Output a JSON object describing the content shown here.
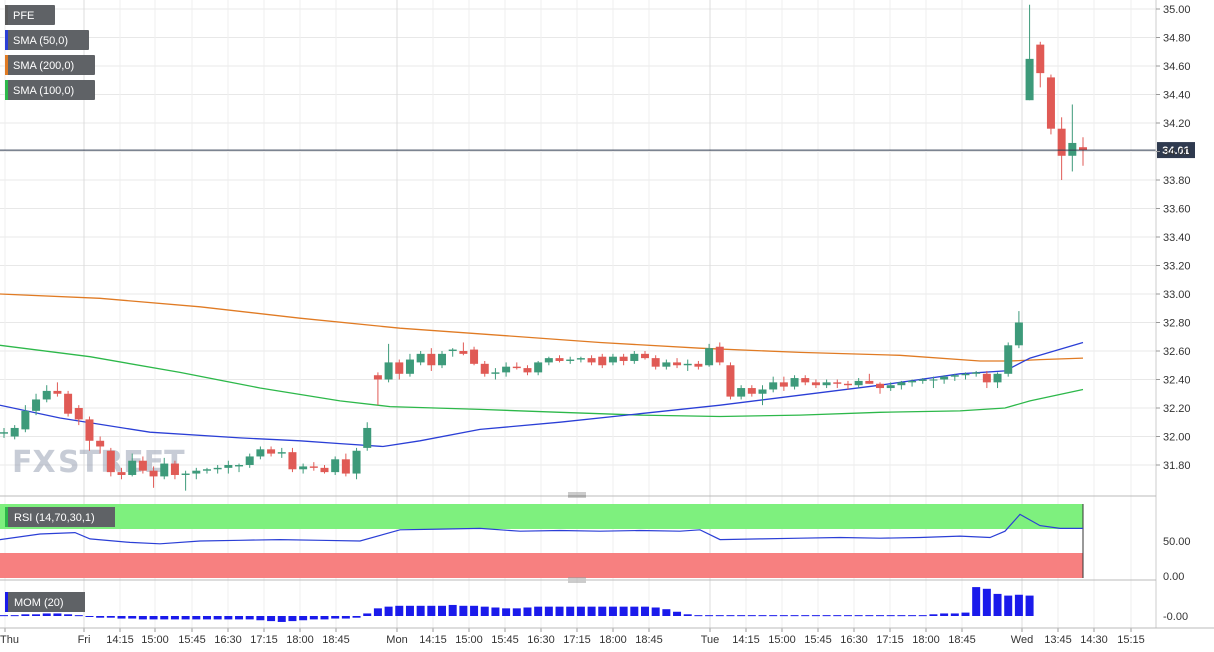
{
  "chart_data": [
    {
      "type": "candlestick",
      "symbol": "PFE",
      "legend": [
        {
          "label": "PFE",
          "color": "#5a5a5a"
        },
        {
          "label": "SMA (50,0)",
          "color": "#2b3fd6"
        },
        {
          "label": "SMA (200,0)",
          "color": "#e07b24"
        },
        {
          "label": "SMA (100,0)",
          "color": "#2db84a"
        }
      ],
      "current_price": "34.01",
      "ylim": [
        31.6,
        35.05
      ],
      "y_ticks": [
        "35.00",
        "34.80",
        "34.60",
        "34.40",
        "34.20",
        "34.00",
        "33.80",
        "33.60",
        "33.40",
        "33.20",
        "33.00",
        "32.80",
        "32.60",
        "32.40",
        "32.20",
        "32.00",
        "31.80"
      ],
      "x_ticks": [
        "Thu",
        "Fri",
        "14:15",
        "15:00",
        "15:45",
        "16:30",
        "17:15",
        "18:00",
        "18:45",
        "Mon",
        "14:15",
        "15:00",
        "15:45",
        "16:30",
        "17:15",
        "18:00",
        "18:45",
        "Tue",
        "14:15",
        "15:00",
        "15:45",
        "16:30",
        "17:15",
        "18:00",
        "18:45",
        "Wed",
        "13:45",
        "14:30",
        "15:15"
      ],
      "sessions": [
        "Fri",
        "Mon",
        "Tue",
        "Wed"
      ],
      "candles": [
        {
          "o": 32.02,
          "h": 32.06,
          "l": 31.99,
          "c": 32.03
        },
        {
          "o": 32.0,
          "h": 32.08,
          "l": 31.98,
          "c": 32.06
        },
        {
          "o": 32.05,
          "h": 32.22,
          "l": 32.03,
          "c": 32.18
        },
        {
          "o": 32.18,
          "h": 32.3,
          "l": 32.15,
          "c": 32.26
        },
        {
          "o": 32.26,
          "h": 32.36,
          "l": 32.24,
          "c": 32.32
        },
        {
          "o": 32.32,
          "h": 32.38,
          "l": 32.28,
          "c": 32.3
        },
        {
          "o": 32.3,
          "h": 32.32,
          "l": 32.14,
          "c": 32.16
        },
        {
          "o": 32.2,
          "h": 32.22,
          "l": 32.08,
          "c": 32.12
        },
        {
          "o": 32.12,
          "h": 32.14,
          "l": 31.9,
          "c": 31.97
        },
        {
          "o": 31.97,
          "h": 32.0,
          "l": 31.88,
          "c": 31.93
        },
        {
          "o": 31.9,
          "h": 31.92,
          "l": 31.72,
          "c": 31.75
        },
        {
          "o": 31.75,
          "h": 31.78,
          "l": 31.7,
          "c": 31.73
        },
        {
          "o": 31.73,
          "h": 31.88,
          "l": 31.72,
          "c": 31.83
        },
        {
          "o": 31.83,
          "h": 31.86,
          "l": 31.74,
          "c": 31.76
        },
        {
          "o": 31.76,
          "h": 31.79,
          "l": 31.64,
          "c": 31.72
        },
        {
          "o": 31.72,
          "h": 31.85,
          "l": 31.7,
          "c": 31.81
        },
        {
          "o": 31.81,
          "h": 31.83,
          "l": 31.7,
          "c": 31.73
        },
        {
          "o": 31.73,
          "h": 31.76,
          "l": 31.62,
          "c": 31.74
        },
        {
          "o": 31.74,
          "h": 31.78,
          "l": 31.7,
          "c": 31.76
        },
        {
          "o": 31.76,
          "h": 31.78,
          "l": 31.74,
          "c": 31.77
        },
        {
          "o": 31.77,
          "h": 31.8,
          "l": 31.74,
          "c": 31.78
        },
        {
          "o": 31.78,
          "h": 31.83,
          "l": 31.74,
          "c": 31.8
        },
        {
          "o": 31.79,
          "h": 31.81,
          "l": 31.75,
          "c": 31.8
        },
        {
          "o": 31.8,
          "h": 31.88,
          "l": 31.78,
          "c": 31.86
        },
        {
          "o": 31.86,
          "h": 31.93,
          "l": 31.84,
          "c": 31.91
        },
        {
          "o": 31.91,
          "h": 31.93,
          "l": 31.86,
          "c": 31.88
        },
        {
          "o": 31.88,
          "h": 31.92,
          "l": 31.85,
          "c": 31.89
        },
        {
          "o": 31.89,
          "h": 31.92,
          "l": 31.75,
          "c": 31.77
        },
        {
          "o": 31.77,
          "h": 31.81,
          "l": 31.74,
          "c": 31.79
        },
        {
          "o": 31.79,
          "h": 31.82,
          "l": 31.76,
          "c": 31.78
        },
        {
          "o": 31.78,
          "h": 31.8,
          "l": 31.74,
          "c": 31.75
        },
        {
          "o": 31.75,
          "h": 31.86,
          "l": 31.73,
          "c": 31.84
        },
        {
          "o": 31.84,
          "h": 31.88,
          "l": 31.72,
          "c": 31.74
        },
        {
          "o": 31.74,
          "h": 31.92,
          "l": 31.7,
          "c": 31.9
        },
        {
          "o": 31.92,
          "h": 32.1,
          "l": 31.9,
          "c": 32.06
        },
        {
          "o": 32.43,
          "h": 32.45,
          "l": 32.22,
          "c": 32.4
        },
        {
          "o": 32.4,
          "h": 32.65,
          "l": 32.38,
          "c": 32.52
        },
        {
          "o": 32.52,
          "h": 32.54,
          "l": 32.4,
          "c": 32.44
        },
        {
          "o": 32.44,
          "h": 32.58,
          "l": 32.42,
          "c": 32.54
        },
        {
          "o": 32.52,
          "h": 32.6,
          "l": 32.5,
          "c": 32.58
        },
        {
          "o": 32.58,
          "h": 32.62,
          "l": 32.46,
          "c": 32.5
        },
        {
          "o": 32.5,
          "h": 32.6,
          "l": 32.48,
          "c": 32.58
        },
        {
          "o": 32.6,
          "h": 32.62,
          "l": 32.56,
          "c": 32.61
        },
        {
          "o": 32.6,
          "h": 32.66,
          "l": 32.57,
          "c": 32.58
        },
        {
          "o": 32.61,
          "h": 32.63,
          "l": 32.5,
          "c": 32.51
        },
        {
          "o": 32.51,
          "h": 32.53,
          "l": 32.42,
          "c": 32.44
        },
        {
          "o": 32.44,
          "h": 32.48,
          "l": 32.4,
          "c": 32.45
        },
        {
          "o": 32.45,
          "h": 32.52,
          "l": 32.42,
          "c": 32.49
        },
        {
          "o": 32.49,
          "h": 32.52,
          "l": 32.47,
          "c": 32.48
        },
        {
          "o": 32.48,
          "h": 32.5,
          "l": 32.43,
          "c": 32.45
        },
        {
          "o": 32.45,
          "h": 32.53,
          "l": 32.43,
          "c": 32.52
        },
        {
          "o": 32.52,
          "h": 32.56,
          "l": 32.5,
          "c": 32.55
        },
        {
          "o": 32.55,
          "h": 32.57,
          "l": 32.52,
          "c": 32.53
        },
        {
          "o": 32.53,
          "h": 32.56,
          "l": 32.51,
          "c": 32.54
        },
        {
          "o": 32.54,
          "h": 32.56,
          "l": 32.52,
          "c": 32.55
        },
        {
          "o": 32.55,
          "h": 32.57,
          "l": 32.5,
          "c": 32.52
        },
        {
          "o": 32.56,
          "h": 32.58,
          "l": 32.48,
          "c": 32.5
        },
        {
          "o": 32.52,
          "h": 32.58,
          "l": 32.5,
          "c": 32.56
        },
        {
          "o": 32.56,
          "h": 32.58,
          "l": 32.5,
          "c": 32.53
        },
        {
          "o": 32.53,
          "h": 32.6,
          "l": 32.51,
          "c": 32.58
        },
        {
          "o": 32.58,
          "h": 32.6,
          "l": 32.54,
          "c": 32.55
        },
        {
          "o": 32.55,
          "h": 32.57,
          "l": 32.47,
          "c": 32.49
        },
        {
          "o": 32.49,
          "h": 32.54,
          "l": 32.47,
          "c": 32.52
        },
        {
          "o": 32.52,
          "h": 32.55,
          "l": 32.48,
          "c": 32.5
        },
        {
          "o": 32.5,
          "h": 32.54,
          "l": 32.46,
          "c": 32.51
        },
        {
          "o": 32.51,
          "h": 32.53,
          "l": 32.47,
          "c": 32.49
        },
        {
          "o": 32.5,
          "h": 32.65,
          "l": 32.49,
          "c": 32.62
        },
        {
          "o": 32.63,
          "h": 32.66,
          "l": 32.5,
          "c": 32.52
        },
        {
          "o": 32.5,
          "h": 32.52,
          "l": 32.26,
          "c": 32.28
        },
        {
          "o": 32.28,
          "h": 32.36,
          "l": 32.26,
          "c": 32.34
        },
        {
          "o": 32.34,
          "h": 32.36,
          "l": 32.28,
          "c": 32.3
        },
        {
          "o": 32.3,
          "h": 32.36,
          "l": 32.22,
          "c": 32.33
        },
        {
          "o": 32.33,
          "h": 32.42,
          "l": 32.31,
          "c": 32.38
        },
        {
          "o": 32.38,
          "h": 32.42,
          "l": 32.32,
          "c": 32.35
        },
        {
          "o": 32.35,
          "h": 32.43,
          "l": 32.33,
          "c": 32.41
        },
        {
          "o": 32.41,
          "h": 32.43,
          "l": 32.36,
          "c": 32.38
        },
        {
          "o": 32.38,
          "h": 32.4,
          "l": 32.34,
          "c": 32.36
        },
        {
          "o": 32.36,
          "h": 32.4,
          "l": 32.34,
          "c": 32.38
        },
        {
          "o": 32.38,
          "h": 32.4,
          "l": 32.34,
          "c": 32.37
        },
        {
          "o": 32.37,
          "h": 32.39,
          "l": 32.33,
          "c": 32.36
        },
        {
          "o": 32.36,
          "h": 32.41,
          "l": 32.34,
          "c": 32.39
        },
        {
          "o": 32.39,
          "h": 32.44,
          "l": 32.37,
          "c": 32.37
        },
        {
          "o": 32.37,
          "h": 32.38,
          "l": 32.3,
          "c": 32.34
        },
        {
          "o": 32.34,
          "h": 32.38,
          "l": 32.32,
          "c": 32.36
        },
        {
          "o": 32.36,
          "h": 32.39,
          "l": 32.33,
          "c": 32.38
        },
        {
          "o": 32.38,
          "h": 32.4,
          "l": 32.35,
          "c": 32.39
        },
        {
          "o": 32.39,
          "h": 32.41,
          "l": 32.37,
          "c": 32.4
        },
        {
          "o": 32.4,
          "h": 32.42,
          "l": 32.34,
          "c": 32.4
        },
        {
          "o": 32.4,
          "h": 32.43,
          "l": 32.37,
          "c": 32.42
        },
        {
          "o": 32.42,
          "h": 32.44,
          "l": 32.39,
          "c": 32.43
        },
        {
          "o": 32.43,
          "h": 32.45,
          "l": 32.4,
          "c": 32.44
        },
        {
          "o": 32.44,
          "h": 32.46,
          "l": 32.42,
          "c": 32.45
        },
        {
          "o": 32.44,
          "h": 32.46,
          "l": 32.34,
          "c": 32.38
        },
        {
          "o": 32.38,
          "h": 32.45,
          "l": 32.34,
          "c": 32.44
        },
        {
          "o": 32.44,
          "h": 32.66,
          "l": 32.42,
          "c": 32.64
        },
        {
          "o": 32.64,
          "h": 32.88,
          "l": 32.62,
          "c": 32.8
        },
        {
          "o": 34.36,
          "h": 35.03,
          "l": 34.36,
          "c": 34.65
        },
        {
          "o": 34.75,
          "h": 34.77,
          "l": 34.45,
          "c": 34.55
        },
        {
          "o": 34.52,
          "h": 34.54,
          "l": 34.12,
          "c": 34.16
        },
        {
          "o": 34.16,
          "h": 34.24,
          "l": 33.8,
          "c": 33.97
        },
        {
          "o": 33.97,
          "h": 34.33,
          "l": 33.86,
          "c": 34.06
        },
        {
          "o": 34.03,
          "h": 34.1,
          "l": 33.9,
          "c": 34.01
        }
      ],
      "sma50": [
        [
          0,
          32.22
        ],
        [
          60,
          32.13
        ],
        [
          150,
          32.03
        ],
        [
          240,
          31.99
        ],
        [
          300,
          31.97
        ],
        [
          340,
          31.95
        ],
        [
          383,
          31.93
        ],
        [
          420,
          31.97
        ],
        [
          480,
          32.05
        ],
        [
          560,
          32.1
        ],
        [
          640,
          32.16
        ],
        [
          720,
          32.22
        ],
        [
          800,
          32.29
        ],
        [
          880,
          32.36
        ],
        [
          960,
          32.44
        ],
        [
          1005,
          32.46
        ],
        [
          1030,
          32.55
        ],
        [
          1083,
          32.66
        ]
      ],
      "sma100": [
        [
          0,
          32.64
        ],
        [
          90,
          32.56
        ],
        [
          180,
          32.45
        ],
        [
          260,
          32.34
        ],
        [
          340,
          32.25
        ],
        [
          390,
          32.21
        ],
        [
          480,
          32.19
        ],
        [
          560,
          32.17
        ],
        [
          640,
          32.15
        ],
        [
          720,
          32.14
        ],
        [
          800,
          32.15
        ],
        [
          880,
          32.17
        ],
        [
          960,
          32.18
        ],
        [
          1005,
          32.2
        ],
        [
          1030,
          32.25
        ],
        [
          1083,
          32.33
        ]
      ],
      "sma200": [
        [
          0,
          33.0
        ],
        [
          100,
          32.97
        ],
        [
          200,
          32.91
        ],
        [
          300,
          32.83
        ],
        [
          400,
          32.76
        ],
        [
          500,
          32.71
        ],
        [
          600,
          32.66
        ],
        [
          700,
          32.62
        ],
        [
          800,
          32.59
        ],
        [
          900,
          32.57
        ],
        [
          980,
          32.53
        ],
        [
          1010,
          32.53
        ],
        [
          1040,
          32.54
        ],
        [
          1083,
          32.55
        ]
      ]
    },
    {
      "type": "line",
      "indicator": "RSI (14,70,30,1)",
      "color": "#2b3fd6",
      "ylim": [
        0,
        100
      ],
      "y_ticks": [
        "50.00",
        "0.00"
      ],
      "overbought": 70,
      "oversold": 30,
      "values": [
        [
          0,
          52
        ],
        [
          40,
          60
        ],
        [
          75,
          62
        ],
        [
          90,
          53
        ],
        [
          130,
          48
        ],
        [
          160,
          46
        ],
        [
          200,
          50
        ],
        [
          240,
          51
        ],
        [
          280,
          52
        ],
        [
          320,
          51
        ],
        [
          360,
          50
        ],
        [
          400,
          66
        ],
        [
          440,
          67
        ],
        [
          480,
          68
        ],
        [
          520,
          64
        ],
        [
          560,
          65
        ],
        [
          600,
          64
        ],
        [
          640,
          65
        ],
        [
          680,
          64
        ],
        [
          700,
          66
        ],
        [
          720,
          52
        ],
        [
          760,
          53
        ],
        [
          800,
          54
        ],
        [
          840,
          55
        ],
        [
          880,
          54
        ],
        [
          920,
          55
        ],
        [
          960,
          57
        ],
        [
          990,
          55
        ],
        [
          1005,
          64
        ],
        [
          1020,
          88
        ],
        [
          1040,
          72
        ],
        [
          1060,
          68
        ],
        [
          1083,
          68
        ]
      ]
    },
    {
      "type": "bar",
      "indicator": "MOM (20)",
      "color": "#1a1aeb",
      "y_ticks": [
        "0.00"
      ],
      "values": [
        0.05,
        0.05,
        0.1,
        0.1,
        0.15,
        0.15,
        0.1,
        0.05,
        -0.05,
        -0.1,
        -0.1,
        -0.15,
        -0.15,
        -0.2,
        -0.2,
        -0.2,
        -0.2,
        -0.2,
        -0.2,
        -0.2,
        -0.2,
        -0.2,
        -0.2,
        -0.2,
        -0.25,
        -0.3,
        -0.35,
        -0.3,
        -0.25,
        -0.2,
        -0.2,
        -0.15,
        -0.15,
        -0.1,
        0.15,
        0.45,
        0.55,
        0.6,
        0.6,
        0.6,
        0.6,
        0.6,
        0.65,
        0.6,
        0.6,
        0.55,
        0.5,
        0.45,
        0.45,
        0.5,
        0.55,
        0.55,
        0.55,
        0.55,
        0.55,
        0.55,
        0.55,
        0.55,
        0.55,
        0.55,
        0.55,
        0.5,
        0.4,
        0.25,
        0.1,
        0.05,
        0.05,
        0.05,
        0.05,
        0.05,
        0.05,
        0.05,
        0.05,
        0.05,
        0.05,
        0.05,
        0.05,
        0.05,
        0.05,
        0.05,
        0.05,
        0.05,
        0.05,
        0.05,
        0.05,
        0.05,
        0.05,
        0.1,
        0.15,
        0.15,
        0.2,
        1.7,
        1.6,
        1.3,
        1.2,
        1.25,
        1.2
      ]
    }
  ],
  "watermark": {
    "part1": "FX",
    "part2": "STREET"
  }
}
